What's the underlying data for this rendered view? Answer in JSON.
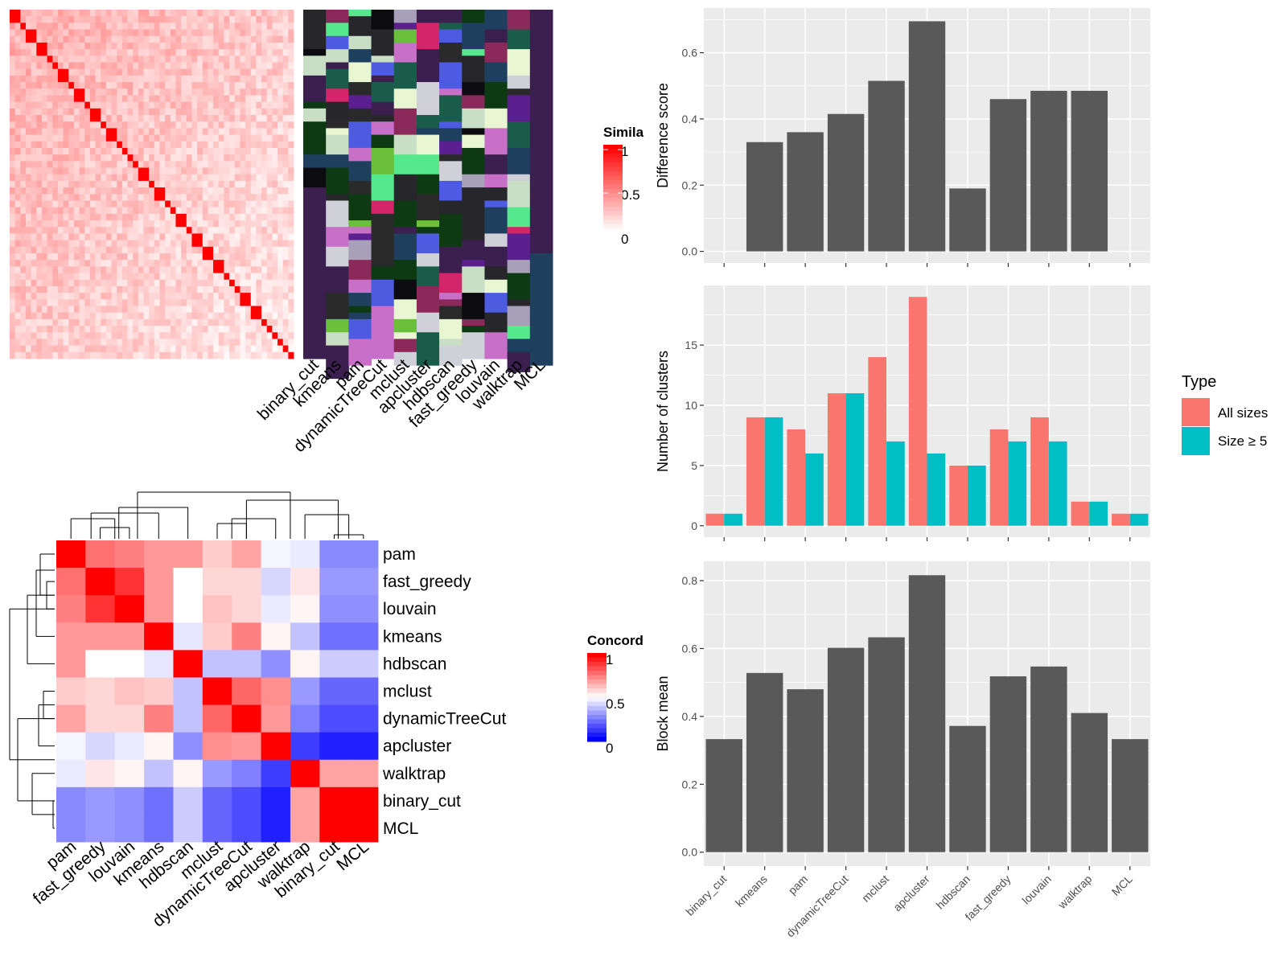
{
  "chart_data": [
    {
      "type": "heatmap",
      "panel": "similarity-heatmap",
      "legend": {
        "title": "Simila",
        "ticks": [
          "1",
          "0.5",
          "0"
        ]
      },
      "column_labels": [
        "binary_cut",
        "kmeans",
        "pam",
        "dynamicTreeCut",
        "mclust",
        "apcluster",
        "hdbscan",
        "fast_greedy",
        "louvain",
        "walktrap",
        "MCL"
      ],
      "diagonal_block_sizes": [
        2,
        1,
        2,
        2,
        1,
        1,
        2,
        1,
        2,
        1,
        2,
        1,
        2,
        1,
        1,
        1,
        1,
        2,
        1,
        2,
        1,
        1,
        2,
        1,
        2,
        2,
        2,
        1,
        1,
        1,
        2,
        2,
        1,
        1,
        1,
        1,
        1,
        1
      ]
    },
    {
      "type": "heatmap",
      "panel": "concordance-heatmap",
      "legend": {
        "title": "Concord",
        "ticks": [
          "1",
          "0.5",
          "0"
        ]
      },
      "labels": [
        "pam",
        "fast_greedy",
        "louvain",
        "kmeans",
        "hdbscan",
        "mclust",
        "dynamicTreeCut",
        "apcluster",
        "walktrap",
        "binary_cut",
        "MCL"
      ],
      "values": [
        [
          1.0,
          0.78,
          0.75,
          0.7,
          0.7,
          0.6,
          0.68,
          0.48,
          0.46,
          0.27,
          0.27
        ],
        [
          0.78,
          1.0,
          0.9,
          0.7,
          0.5,
          0.58,
          0.58,
          0.42,
          0.55,
          0.3,
          0.3
        ],
        [
          0.75,
          0.9,
          1.0,
          0.7,
          0.5,
          0.62,
          0.58,
          0.46,
          0.52,
          0.28,
          0.28
        ],
        [
          0.7,
          0.7,
          0.7,
          1.0,
          0.45,
          0.6,
          0.75,
          0.52,
          0.38,
          0.22,
          0.22
        ],
        [
          0.7,
          0.5,
          0.5,
          0.45,
          1.0,
          0.38,
          0.38,
          0.28,
          0.52,
          0.4,
          0.4
        ],
        [
          0.6,
          0.58,
          0.62,
          0.6,
          0.38,
          1.0,
          0.8,
          0.72,
          0.3,
          0.2,
          0.2
        ],
        [
          0.68,
          0.58,
          0.58,
          0.75,
          0.38,
          0.8,
          1.0,
          0.7,
          0.25,
          0.15,
          0.15
        ],
        [
          0.48,
          0.42,
          0.46,
          0.52,
          0.28,
          0.72,
          0.7,
          1.0,
          0.12,
          0.06,
          0.06
        ],
        [
          0.46,
          0.55,
          0.52,
          0.38,
          0.52,
          0.3,
          0.25,
          0.12,
          1.0,
          0.68,
          0.68
        ],
        [
          0.27,
          0.3,
          0.28,
          0.22,
          0.4,
          0.2,
          0.15,
          0.06,
          0.68,
          1.0,
          1.0
        ],
        [
          0.27,
          0.3,
          0.28,
          0.22,
          0.4,
          0.2,
          0.15,
          0.06,
          0.68,
          1.0,
          1.0
        ]
      ]
    },
    {
      "type": "bar",
      "panel": "difference-score",
      "categories": [
        "binary_cut",
        "kmeans",
        "pam",
        "dynamicTreeCut",
        "mclust",
        "apcluster",
        "hdbscan",
        "fast_greedy",
        "louvain",
        "walktrap",
        "MCL"
      ],
      "values": [
        0,
        0.33,
        0.36,
        0.415,
        0.515,
        0.695,
        0.19,
        0.46,
        0.485,
        0.485,
        0
      ],
      "ylabel": "Difference score",
      "ylim": [
        -0.035,
        0.735
      ],
      "yticks": [
        "0.0",
        "0.2",
        "0.4",
        "0.6"
      ],
      "bar_color": "#595959"
    },
    {
      "type": "bar",
      "panel": "number-of-clusters",
      "categories": [
        "binary_cut",
        "kmeans",
        "pam",
        "dynamicTreeCut",
        "mclust",
        "apcluster",
        "hdbscan",
        "fast_greedy",
        "louvain",
        "walktrap",
        "MCL"
      ],
      "series": [
        {
          "name": "All sizes",
          "values": [
            1,
            9,
            8,
            11,
            14,
            19,
            5,
            8,
            9,
            2,
            1
          ],
          "color": "#F8766D"
        },
        {
          "name": "Size ≥ 5",
          "values": [
            1,
            9,
            6,
            11,
            7,
            6,
            5,
            7,
            7,
            2,
            1
          ],
          "color": "#00BFC4"
        }
      ],
      "ylabel": "Number of clusters",
      "ylim": [
        -0.95,
        19.95
      ],
      "yticks": [
        "0",
        "5",
        "10",
        "15"
      ],
      "legend": {
        "title": "Type",
        "position": "right"
      }
    },
    {
      "type": "bar",
      "panel": "block-mean",
      "categories": [
        "binary_cut",
        "kmeans",
        "pam",
        "dynamicTreeCut",
        "mclust",
        "apcluster",
        "hdbscan",
        "fast_greedy",
        "louvain",
        "walktrap",
        "MCL"
      ],
      "values": [
        0.333,
        0.528,
        0.48,
        0.602,
        0.633,
        0.816,
        0.372,
        0.518,
        0.547,
        0.41,
        0.333
      ],
      "ylabel": "Block mean",
      "ylim": [
        -0.041,
        0.857
      ],
      "yticks": [
        "0.0",
        "0.2",
        "0.4",
        "0.6",
        "0.8"
      ],
      "bar_color": "#595959"
    }
  ]
}
